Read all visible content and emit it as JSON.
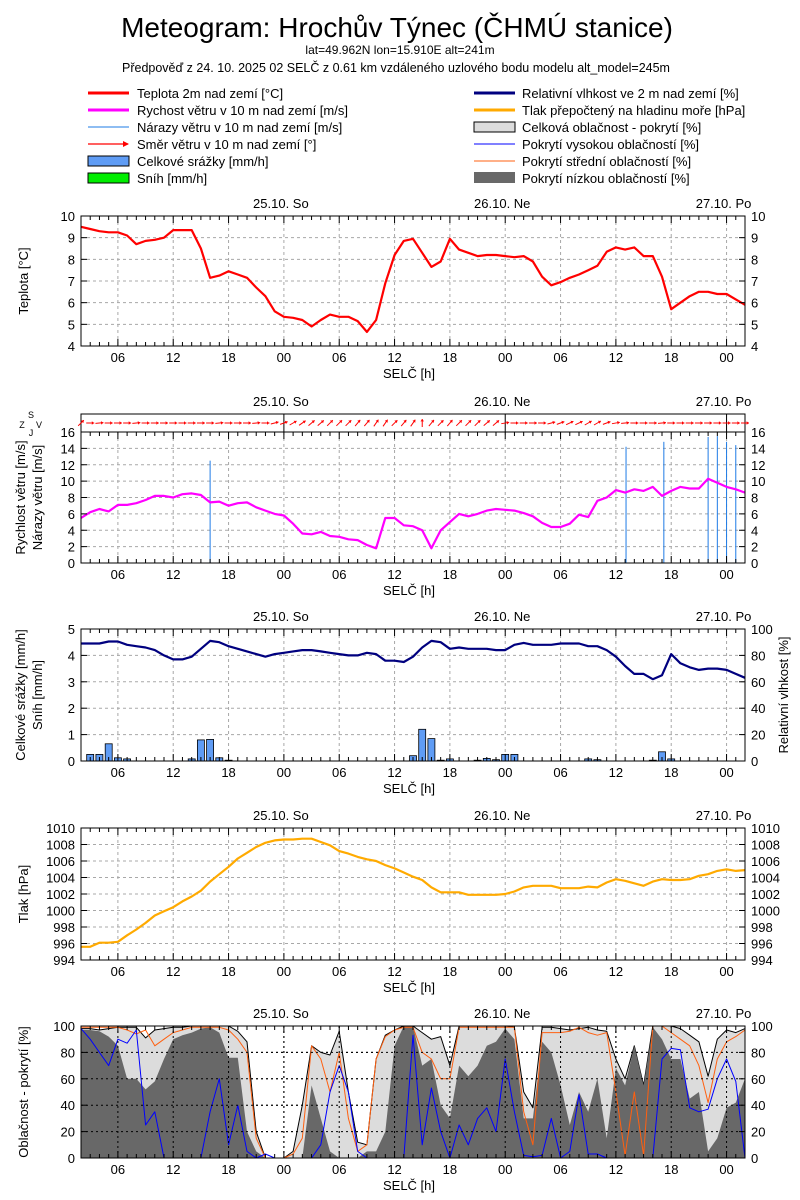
{
  "header": {
    "title": "Meteogram: Hrochův Týnec (ČHMÚ stanice)",
    "coords": "lat=49.962N lon=15.910E alt=241m",
    "forecast_info": "Předpověď z 24. 10. 2025 02 SELČ z 0.61 km vzdáleného uzlového bodu modelu alt_model=245m"
  },
  "legend": {
    "left": [
      {
        "label": "Teplota 2m nad zemí [°C]",
        "color": "#ff0000"
      },
      {
        "label": "Rychost větru v 10 m nad zemí [m/s]",
        "color": "#ff00ff"
      },
      {
        "label": "Nárazy větru v 10 m nad zemí [m/s]",
        "color": "#1e7be6"
      },
      {
        "label": "Směr větru v 10 m nad zemí [°]",
        "color": "#ff0000"
      },
      {
        "label": "Celkové srážky [mm/h]",
        "color": "#6495ed"
      },
      {
        "label": "Sníh [mm/h]",
        "color": "#00ee00"
      }
    ],
    "right": [
      {
        "label": "Relativní vlhkost ve 2 m nad zemí [%]",
        "color": "#00007f"
      },
      {
        "label": "Tlak přepočtený na hladinu moře [hPa]",
        "color": "#ffaa00"
      },
      {
        "label": "Celková oblačnost - pokrytí [%]",
        "color": "#dcdcdc"
      },
      {
        "label": "Pokrytí vysokou oblačností [%]",
        "color": "#0000ff"
      },
      {
        "label": "Pokrytí střední oblačností [%]",
        "color": "#ff6010"
      },
      {
        "label": "Pokrytí nízkou oblačností [%]",
        "color": "#686868"
      }
    ]
  },
  "time_axis": {
    "xlabel": "SELČ [h]",
    "range_hours": [
      0,
      72
    ],
    "step_hours": 1,
    "x_ticks": [
      {
        "h": 4,
        "label": "06"
      },
      {
        "h": 10,
        "label": "12"
      },
      {
        "h": 16,
        "label": "18"
      },
      {
        "h": 22,
        "label": "00"
      },
      {
        "h": 28,
        "label": "06"
      },
      {
        "h": 34,
        "label": "12"
      },
      {
        "h": 40,
        "label": "18"
      },
      {
        "h": 46,
        "label": "00"
      },
      {
        "h": 52,
        "label": "06"
      },
      {
        "h": 58,
        "label": "12"
      },
      {
        "h": 64,
        "label": "18"
      },
      {
        "h": 70,
        "label": "00"
      }
    ],
    "day_labels": [
      {
        "h": 22,
        "label": "25.10. So"
      },
      {
        "h": 46,
        "label": "26.10. Ne"
      },
      {
        "h": 70,
        "label": "27.10. Po"
      }
    ]
  },
  "chart_data": [
    {
      "id": "temperature",
      "type": "line",
      "ylabel": "Teplota [°C]",
      "ylim": [
        4,
        10
      ],
      "yticks": [
        4,
        5,
        6,
        7,
        8,
        9,
        10
      ],
      "grid": true,
      "series": [
        {
          "name": "Teplota 2m nad zemí [°C]",
          "color": "#ff0000",
          "values": [
            9.5,
            9.4,
            9.3,
            9.25,
            9.25,
            9.1,
            8.7,
            8.85,
            8.9,
            9.0,
            9.35,
            9.35,
            9.35,
            8.5,
            7.15,
            7.25,
            7.45,
            7.3,
            7.15,
            6.7,
            6.3,
            5.6,
            5.35,
            5.3,
            5.2,
            4.9,
            5.2,
            5.45,
            5.35,
            5.35,
            5.15,
            4.65,
            5.2,
            6.9,
            8.2,
            8.85,
            8.95,
            8.3,
            7.65,
            7.9,
            8.95,
            8.45,
            8.3,
            8.15,
            8.2,
            8.2,
            8.15,
            8.1,
            8.15,
            7.9,
            7.2,
            6.8,
            6.95,
            7.15,
            7.3,
            7.5,
            7.7,
            8.35,
            8.55,
            8.45,
            8.55,
            8.15,
            8.15,
            7.2,
            5.7,
            6.0,
            6.3,
            6.5,
            6.5,
            6.4,
            6.4,
            6.15,
            5.9
          ]
        }
      ]
    },
    {
      "id": "wind",
      "type": "line",
      "ylabels": [
        "Rychlost větru [m/s]",
        "Nárazy větru [m/s]"
      ],
      "compass": [
        "Z",
        "J",
        "S",
        "V"
      ],
      "ylim": [
        0,
        16
      ],
      "yticks": [
        0,
        2,
        4,
        6,
        8,
        10,
        12,
        14,
        16
      ],
      "grid": true,
      "series": [
        {
          "name": "Rychost větru v 10 m nad zemí [m/s]",
          "color": "#ff00ff",
          "values": [
            5.5,
            6.2,
            6.6,
            6.3,
            7.1,
            7.1,
            7.3,
            7.7,
            8.2,
            8.2,
            8.0,
            8.4,
            8.5,
            8.3,
            7.4,
            7.5,
            7.0,
            7.3,
            7.4,
            6.8,
            6.4,
            6.0,
            5.8,
            4.8,
            3.6,
            3.5,
            3.8,
            3.3,
            3.2,
            2.9,
            2.8,
            2.2,
            1.8,
            5.5,
            5.5,
            4.6,
            4.5,
            4.0,
            1.8,
            4.0,
            5.0,
            6.0,
            5.7,
            6.0,
            6.4,
            6.6,
            6.5,
            6.4,
            6.1,
            5.7,
            4.9,
            4.4,
            4.4,
            4.8,
            5.9,
            5.6,
            7.6,
            8.0,
            8.9,
            8.6,
            9.0,
            8.8,
            9.3,
            8.2,
            8.8,
            9.3,
            9.1,
            9.1,
            10.3,
            9.8,
            9.3,
            9.0,
            8.6
          ]
        }
      ],
      "gusts": {
        "name": "Nárazy větru v 10 m nad zemí [m/s]",
        "color": "#1e7be6",
        "points": [
          {
            "h": 14,
            "v": 12.5
          },
          {
            "h": 59.1,
            "v": 14.2
          },
          {
            "h": 63.2,
            "v": 14.8
          },
          {
            "h": 68,
            "v": 15.4
          },
          {
            "h": 69,
            "v": 15.5
          },
          {
            "h": 70,
            "v": 14.8
          },
          {
            "h": 71,
            "v": 14.4
          }
        ]
      },
      "direction": {
        "name": "Směr větru v 10 m nad zemí [°]",
        "color": "#ff0000",
        "degrees": [
          225,
          270,
          265,
          270,
          270,
          270,
          265,
          270,
          270,
          270,
          270,
          270,
          270,
          270,
          270,
          265,
          270,
          270,
          270,
          265,
          270,
          255,
          250,
          240,
          235,
          230,
          230,
          225,
          225,
          225,
          220,
          220,
          215,
          215,
          225,
          220,
          215,
          180,
          220,
          225,
          220,
          225,
          225,
          225,
          230,
          230,
          260,
          270,
          270,
          270,
          270,
          255,
          250,
          245,
          245,
          240,
          240,
          250,
          260,
          265,
          270,
          270,
          270,
          265,
          270,
          270,
          270,
          270,
          270,
          270,
          270,
          270,
          270
        ]
      }
    },
    {
      "id": "precipitation-humidity",
      "type": "bar+line",
      "ylabels": [
        "Celkové srážky [mm/h]",
        "Sníh [mm/h]"
      ],
      "ylabel_right": "Relativní vlhkost [%]",
      "ylim": [
        0,
        5
      ],
      "yticks": [
        0,
        1,
        2,
        3,
        4,
        5
      ],
      "ylim_right": [
        0,
        100
      ],
      "yticks_right": [
        0,
        20,
        40,
        60,
        80,
        100
      ],
      "grid": true,
      "precip": {
        "name": "Celkové srážky [mm/h]",
        "color": "#5f9cf5",
        "bars": [
          {
            "h": 1,
            "v": 0.25
          },
          {
            "h": 2,
            "v": 0.25
          },
          {
            "h": 3,
            "v": 0.65
          },
          {
            "h": 4,
            "v": 0.12
          },
          {
            "h": 5,
            "v": 0.08
          },
          {
            "h": 12,
            "v": 0.08
          },
          {
            "h": 13,
            "v": 0.8
          },
          {
            "h": 14,
            "v": 0.82
          },
          {
            "h": 15,
            "v": 0.12
          },
          {
            "h": 16,
            "v": 0.03
          },
          {
            "h": 36,
            "v": 0.2
          },
          {
            "h": 37,
            "v": 1.2
          },
          {
            "h": 38,
            "v": 0.85
          },
          {
            "h": 39,
            "v": 0.03
          },
          {
            "h": 40,
            "v": 0.08
          },
          {
            "h": 43,
            "v": 0.03
          },
          {
            "h": 44,
            "v": 0.1
          },
          {
            "h": 45,
            "v": 0.05
          },
          {
            "h": 46,
            "v": 0.25
          },
          {
            "h": 47,
            "v": 0.25
          },
          {
            "h": 55,
            "v": 0.08
          },
          {
            "h": 56,
            "v": 0.05
          },
          {
            "h": 62,
            "v": 0.03
          },
          {
            "h": 63,
            "v": 0.35
          },
          {
            "h": 64,
            "v": 0.08
          }
        ]
      },
      "snow": {
        "name": "Sníh [mm/h]",
        "bars": []
      },
      "series": [
        {
          "name": "Relativní vlhkost ve 2 m nad zemí [%]",
          "color": "#00007f",
          "axis": "right",
          "values": [
            89,
            89,
            89,
            90.5,
            90.5,
            88,
            87,
            86,
            84,
            80,
            77,
            77,
            79,
            85,
            91,
            90,
            87,
            85,
            83,
            81,
            79,
            81,
            82,
            83,
            84,
            84,
            83,
            82,
            81,
            80,
            80,
            82,
            81,
            76,
            76,
            75,
            79,
            86,
            91,
            90,
            85,
            86,
            85,
            85,
            85,
            84,
            84,
            88,
            89.5,
            88,
            88,
            88,
            89,
            89,
            89,
            87,
            87,
            84,
            79,
            72,
            66,
            66,
            62,
            65,
            81,
            74,
            71,
            69,
            70,
            70,
            69,
            66,
            63
          ]
        }
      ]
    },
    {
      "id": "pressure",
      "type": "line",
      "ylabel": "Tlak [hPa]",
      "ylim": [
        994,
        1010
      ],
      "yticks": [
        994,
        996,
        998,
        1000,
        1002,
        1004,
        1006,
        1008,
        1010
      ],
      "grid": true,
      "series": [
        {
          "name": "Tlak přepočtený na hladinu moře [hPa]",
          "color": "#ffaa00",
          "values": [
            995.6,
            995.6,
            996.1,
            996.1,
            996.2,
            997,
            997.7,
            998.5,
            999.4,
            999.9,
            1000.4,
            1001.1,
            1001.7,
            1002.4,
            1003.5,
            1004.4,
            1005.3,
            1006.3,
            1007,
            1007.7,
            1008.2,
            1008.5,
            1008.6,
            1008.6,
            1008.7,
            1008.7,
            1008.3,
            1007.9,
            1007.2,
            1006.9,
            1006.5,
            1006.2,
            1006,
            1005.5,
            1005.1,
            1004.6,
            1004.1,
            1003.7,
            1002.8,
            1002.2,
            1002.2,
            1002.2,
            1001.9,
            1001.9,
            1001.9,
            1001.9,
            1002,
            1002.3,
            1002.8,
            1003,
            1003,
            1003,
            1002.7,
            1002.7,
            1002.7,
            1002.9,
            1002.8,
            1003.4,
            1003.8,
            1003.6,
            1003.3,
            1003,
            1003.5,
            1003.8,
            1003.7,
            1003.7,
            1003.8,
            1004.2,
            1004.4,
            1004.8,
            1005,
            1004.8,
            1004.9
          ]
        }
      ]
    },
    {
      "id": "cloudiness",
      "type": "area+line",
      "ylabel": "Oblačnost - pokrytí [%]",
      "ylim": [
        0,
        100
      ],
      "yticks": [
        0,
        20,
        40,
        60,
        80,
        100
      ],
      "grid": true,
      "series": [
        {
          "name": "Celková oblačnost - pokrytí [%]",
          "kind": "area",
          "color": "#dcdcdc",
          "values": [
            98,
            98,
            97,
            98,
            99,
            99,
            99,
            91,
            97,
            98,
            99,
            99,
            100,
            100,
            100,
            100,
            100,
            96,
            88,
            20,
            0,
            0,
            0,
            5,
            40,
            85,
            80,
            78,
            96,
            50,
            12,
            10,
            75,
            93,
            97,
            100,
            100,
            95,
            90,
            92,
            70,
            100,
            100,
            100,
            100,
            100,
            100,
            99,
            50,
            38,
            99,
            99,
            98,
            97,
            98,
            99,
            97,
            96,
            75,
            60,
            85,
            55,
            100,
            100,
            100,
            98,
            93,
            88,
            62,
            90,
            97,
            95,
            98
          ]
        },
        {
          "name": "Pokrytí nízkou oblačností [%]",
          "kind": "area",
          "color": "#686868",
          "values": [
            97,
            97,
            96,
            92,
            85,
            60,
            60,
            52,
            58,
            75,
            90,
            93,
            95,
            98,
            99,
            95,
            76,
            76,
            20,
            5,
            0,
            0,
            0,
            0,
            0,
            55,
            30,
            5,
            0,
            0,
            0,
            5,
            5,
            20,
            85,
            100,
            100,
            70,
            75,
            40,
            30,
            70,
            62,
            70,
            85,
            88,
            98,
            90,
            30,
            30,
            88,
            80,
            55,
            25,
            50,
            35,
            60,
            15,
            68,
            55,
            85,
            55,
            99,
            90,
            75,
            75,
            45,
            50,
            5,
            15,
            38,
            42,
            60
          ]
        },
        {
          "name": "Pokrytí střední oblačností [%]",
          "kind": "line",
          "color": "#ff6010",
          "values": [
            99,
            99,
            99,
            99,
            99,
            97,
            94,
            97,
            85,
            90,
            95,
            97,
            99,
            99,
            99,
            99,
            97,
            90,
            80,
            15,
            0,
            0,
            0,
            3,
            15,
            85,
            75,
            50,
            80,
            30,
            5,
            10,
            75,
            92,
            97,
            99,
            99,
            80,
            75,
            60,
            60,
            99,
            99,
            99,
            99,
            99,
            99,
            99,
            35,
            10,
            95,
            95,
            95,
            96,
            99,
            95,
            93,
            95,
            50,
            2,
            50,
            2,
            100,
            100,
            95,
            90,
            85,
            70,
            42,
            75,
            88,
            92,
            97
          ]
        },
        {
          "name": "Pokrytí vysokou oblačností [%]",
          "kind": "line",
          "color": "#0000ff",
          "values": [
            98,
            90,
            80,
            70,
            90,
            87,
            97,
            25,
            35,
            0,
            0,
            0,
            0,
            0,
            35,
            60,
            10,
            40,
            5,
            0,
            3,
            0,
            0,
            0,
            0,
            0,
            10,
            50,
            70,
            50,
            5,
            0,
            0,
            0,
            0,
            0,
            93,
            10,
            53,
            20,
            0,
            25,
            10,
            30,
            38,
            20,
            75,
            35,
            2,
            1,
            2,
            30,
            0,
            5,
            48,
            3,
            3,
            0,
            0,
            0,
            0,
            0,
            0,
            75,
            83,
            82,
            38,
            35,
            37,
            60,
            75,
            58,
            0
          ]
        }
      ]
    }
  ]
}
